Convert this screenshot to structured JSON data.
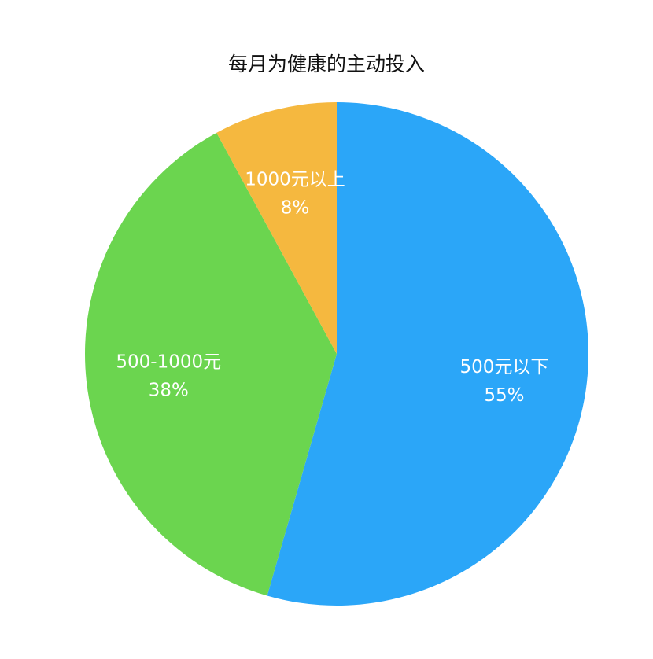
{
  "chart_data": {
    "type": "pie",
    "title": "每月为健康的主动投入",
    "start": "top",
    "direction": "clockwise",
    "slices": [
      {
        "label": "500元以下",
        "value": 55,
        "display": "55%",
        "color": "#2ba6f8"
      },
      {
        "label": "500-1000元",
        "value": 38,
        "display": "38%",
        "color": "#6bd54f"
      },
      {
        "label": "1000元以上",
        "value": 8,
        "display": "8%",
        "color": "#f5b83f"
      }
    ]
  }
}
